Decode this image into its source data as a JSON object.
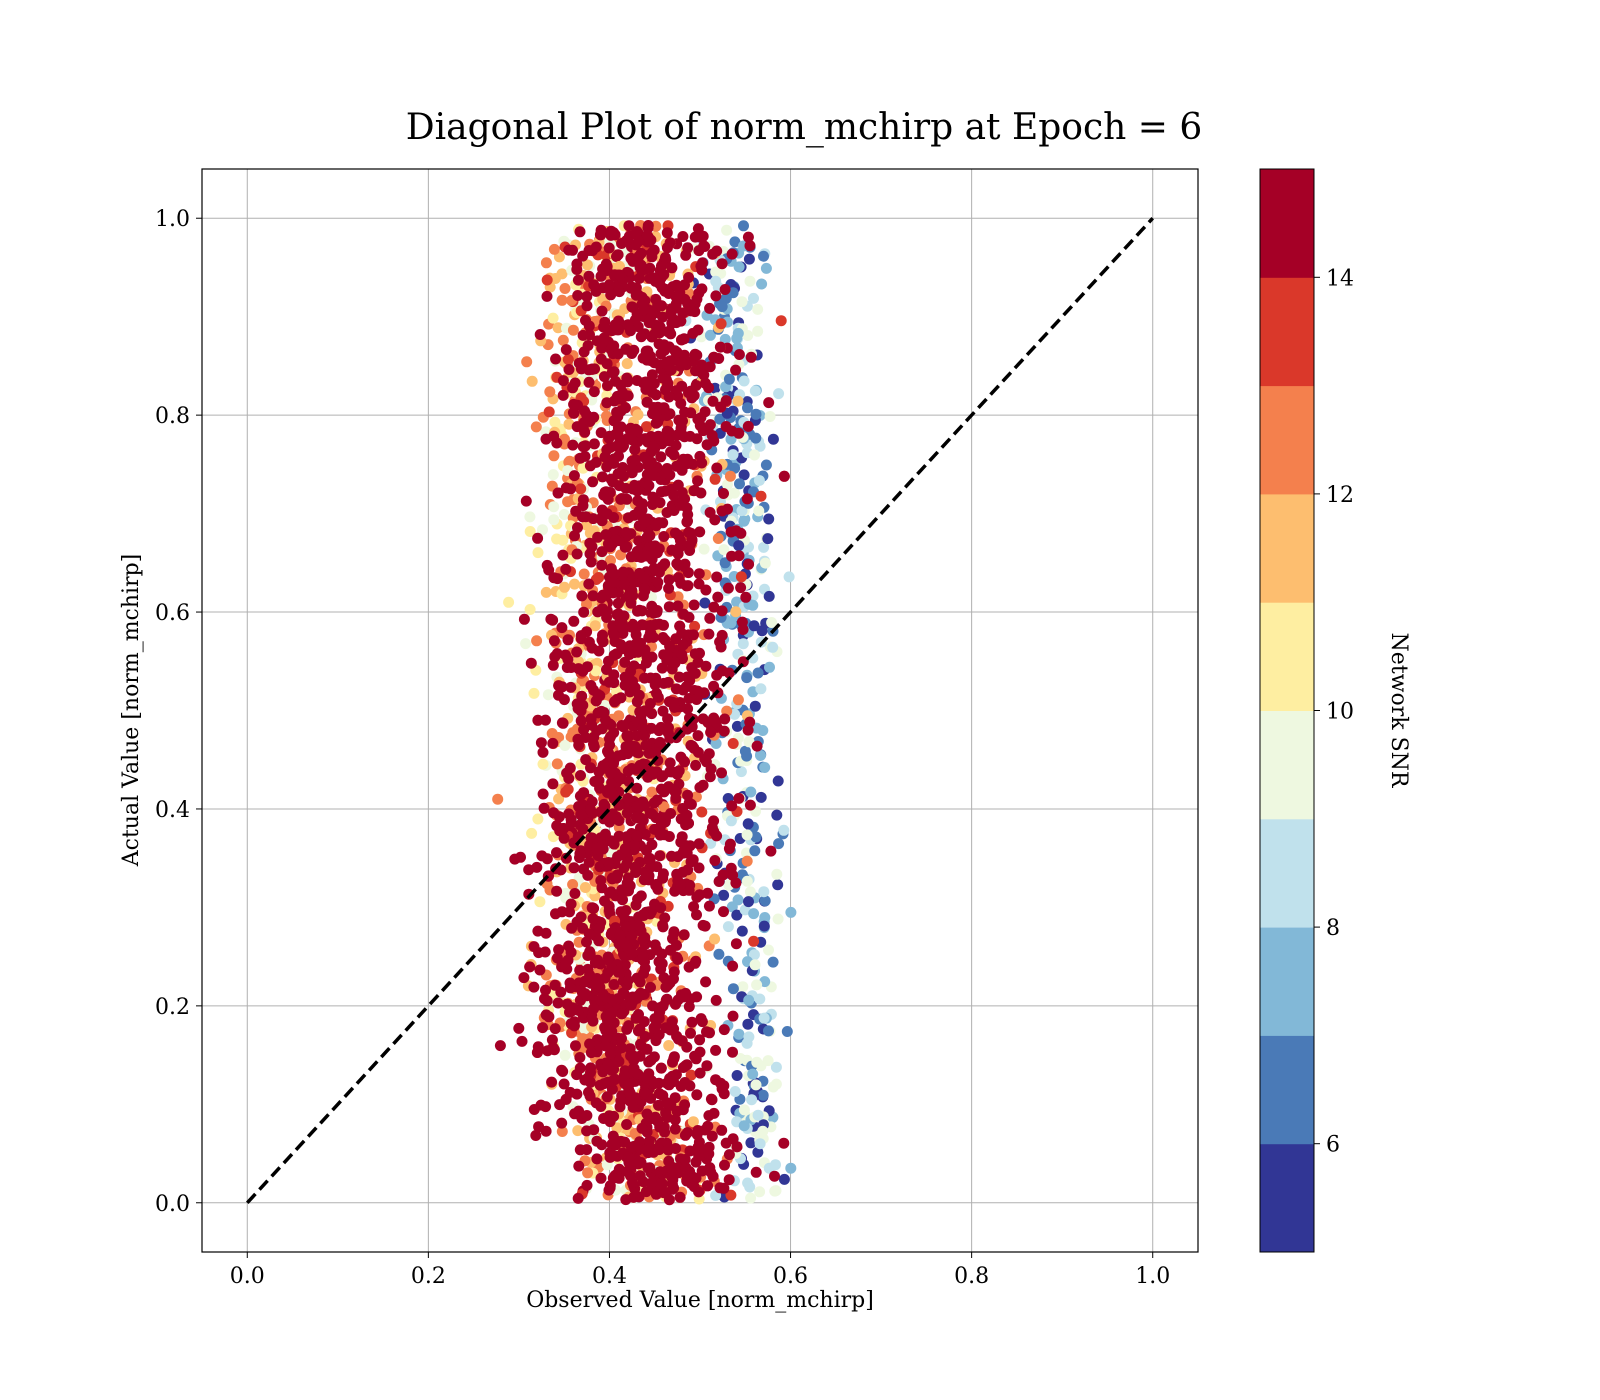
{
  "chart_data": {
    "type": "scatter",
    "title": "Diagonal Plot of norm_mchirp at Epoch = 6",
    "xlabel": "Observed Value [norm_mchirp]",
    "ylabel": "Actual Value [norm_mchirp]",
    "xlim": [
      -0.05,
      1.05
    ],
    "ylim": [
      -0.05,
      1.05
    ],
    "xticks": [
      0.0,
      0.2,
      0.4,
      0.6,
      0.8,
      1.0
    ],
    "yticks": [
      0.0,
      0.2,
      0.4,
      0.6,
      0.8,
      1.0
    ],
    "xtick_labels": [
      "0.0",
      "0.2",
      "0.4",
      "0.6",
      "0.8",
      "1.0"
    ],
    "ytick_labels": [
      "0.0",
      "0.2",
      "0.4",
      "0.6",
      "0.8",
      "1.0"
    ],
    "grid": true,
    "reference_line": {
      "x": [
        0.0,
        1.0
      ],
      "y": [
        0.0,
        1.0
      ],
      "style": "dashed",
      "color": "#000000"
    },
    "points_description_note": "",
    "colorbar": {
      "label": "Network SNR",
      "vmin": 5,
      "vmax": 15,
      "ticks": [
        6,
        8,
        10,
        12,
        14
      ],
      "tick_labels": [
        "6",
        "8",
        "10",
        "12",
        "14"
      ],
      "colors": [
        "#313695",
        "#4a7ab7",
        "#82b8d7",
        "#c0e1ec",
        "#eef8e0",
        "#feeea1",
        "#fdbe6f",
        "#f4804d",
        "#da382a",
        "#a50026"
      ]
    },
    "clusters": [
      {
        "snr": 15,
        "x_center_at_y": [
          [
            0.0,
            0.47
          ],
          [
            0.1,
            0.43
          ],
          [
            0.2,
            0.41
          ],
          [
            0.3,
            0.42
          ],
          [
            0.4,
            0.435
          ],
          [
            0.5,
            0.44
          ],
          [
            0.6,
            0.44
          ],
          [
            0.7,
            0.44
          ],
          [
            0.8,
            0.44
          ],
          [
            0.9,
            0.44
          ],
          [
            1.0,
            0.44
          ]
        ],
        "x_spread": 0.05
      },
      {
        "snr": 12,
        "x_center_at_y": [
          [
            0.0,
            0.45
          ],
          [
            0.2,
            0.39
          ],
          [
            0.4,
            0.38
          ],
          [
            0.6,
            0.38
          ],
          [
            0.8,
            0.38
          ],
          [
            1.0,
            0.39
          ]
        ],
        "x_spread": 0.03
      },
      {
        "snr": 6,
        "x_center_at_y": [
          [
            0.1,
            0.56
          ],
          [
            0.3,
            0.55
          ],
          [
            0.5,
            0.55
          ],
          [
            0.7,
            0.55
          ],
          [
            0.9,
            0.53
          ]
        ],
        "x_spread": 0.02
      }
    ]
  }
}
